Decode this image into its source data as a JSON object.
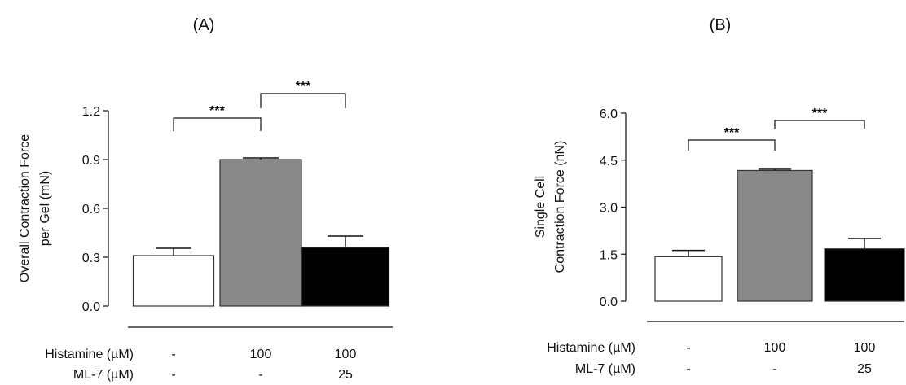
{
  "chart_data": [
    {
      "type": "bar",
      "panel_label": "(A)",
      "ylabel_lines": [
        "Overall Contraction Force",
        "per Gel (mN)"
      ],
      "ylim": [
        0,
        1.2
      ],
      "yticks": [
        "0.0",
        "0.3",
        "0.6",
        "0.9",
        "1.2"
      ],
      "categories": [
        "-",
        "100",
        "100"
      ],
      "values": [
        0.31,
        0.9,
        0.36
      ],
      "errors": [
        0.045,
        0.01,
        0.07
      ],
      "bar_colors": [
        "#ffffff",
        "#888888",
        "#000000"
      ],
      "condition_rows": [
        {
          "label": "Histamine (µM)",
          "values": [
            "-",
            "100",
            "100"
          ]
        },
        {
          "label": "ML-7 (µM)",
          "values": [
            "-",
            "-",
            "25"
          ]
        }
      ],
      "significance": [
        {
          "from": 0,
          "to": 1,
          "label": "***"
        },
        {
          "from": 1,
          "to": 2,
          "label": "***"
        }
      ]
    },
    {
      "type": "bar",
      "panel_label": "(B)",
      "ylabel_lines": [
        "Single Cell",
        "Contraction  Force (nN)"
      ],
      "ylim": [
        0,
        6.0
      ],
      "yticks": [
        "0.0",
        "1.5",
        "3.0",
        "4.5",
        "6.0"
      ],
      "categories": [
        "-",
        "100",
        "100"
      ],
      "values": [
        1.42,
        4.17,
        1.67
      ],
      "errors": [
        0.2,
        0.04,
        0.33
      ],
      "bar_colors": [
        "#ffffff",
        "#888888",
        "#000000"
      ],
      "condition_rows": [
        {
          "label": "Histamine (µM)",
          "values": [
            "-",
            "100",
            "100"
          ]
        },
        {
          "label": "ML-7 (µM)",
          "values": [
            "-",
            "-",
            "25"
          ]
        }
      ],
      "significance": [
        {
          "from": 0,
          "to": 1,
          "label": "***"
        },
        {
          "from": 1,
          "to": 2,
          "label": "***"
        }
      ]
    }
  ]
}
